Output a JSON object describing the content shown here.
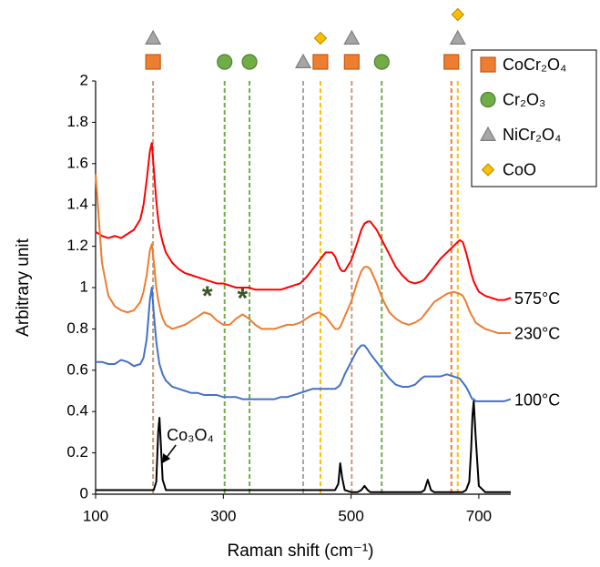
{
  "chart_data": {
    "type": "line",
    "x_label": "Raman shift (cm⁻¹)",
    "y_label": "Arbitrary unit",
    "xlim": [
      100,
      750
    ],
    "xticks": [
      100,
      300,
      500,
      700
    ],
    "ylim": [
      0,
      2
    ],
    "yticks": [
      0,
      0.2,
      0.4,
      0.6,
      0.8,
      1,
      1.2,
      1.4,
      1.6,
      1.8,
      2
    ],
    "legend_position": "top-right",
    "x": [
      100,
      110,
      120,
      130,
      140,
      150,
      160,
      170,
      175,
      180,
      185,
      188,
      191,
      195,
      198,
      200,
      202,
      205,
      210,
      220,
      230,
      240,
      250,
      260,
      270,
      280,
      290,
      300,
      310,
      320,
      330,
      340,
      350,
      360,
      370,
      380,
      390,
      400,
      410,
      420,
      430,
      440,
      450,
      460,
      470,
      475,
      480,
      483,
      486,
      490,
      500,
      510,
      516,
      521,
      526,
      530,
      540,
      550,
      560,
      570,
      580,
      590,
      600,
      610,
      615,
      620,
      625,
      630,
      640,
      650,
      660,
      670,
      675,
      680,
      685,
      688,
      690,
      692,
      695,
      700,
      710,
      720,
      730,
      740,
      750
    ],
    "series": [
      {
        "name": "575°C",
        "color": "#ff0000",
        "label_style": "end",
        "values": [
          1.27,
          1.25,
          1.24,
          1.25,
          1.24,
          1.26,
          1.28,
          1.33,
          1.4,
          1.52,
          1.66,
          1.7,
          1.58,
          1.42,
          1.33,
          1.29,
          1.26,
          1.22,
          1.17,
          1.12,
          1.09,
          1.07,
          1.06,
          1.05,
          1.04,
          1.03,
          1.02,
          1.02,
          1.01,
          1.0,
          1.0,
          1.0,
          0.99,
          0.99,
          0.99,
          0.99,
          0.99,
          1.0,
          1.01,
          1.02,
          1.05,
          1.09,
          1.13,
          1.17,
          1.17,
          1.15,
          1.11,
          1.09,
          1.08,
          1.08,
          1.13,
          1.22,
          1.28,
          1.31,
          1.32,
          1.32,
          1.28,
          1.22,
          1.16,
          1.1,
          1.06,
          1.03,
          1.02,
          1.03,
          1.04,
          1.06,
          1.08,
          1.1,
          1.14,
          1.17,
          1.2,
          1.23,
          1.22,
          1.17,
          1.11,
          1.07,
          1.05,
          1.03,
          1.01,
          0.98,
          0.96,
          0.95,
          0.94,
          0.94,
          0.95
        ]
      },
      {
        "name": "230°C",
        "color": "#ed7d31",
        "label_style": "end",
        "values": [
          1.55,
          1.12,
          0.96,
          0.91,
          0.89,
          0.88,
          0.89,
          0.93,
          0.98,
          1.06,
          1.18,
          1.21,
          1.13,
          1.0,
          0.94,
          0.91,
          0.88,
          0.85,
          0.82,
          0.8,
          0.81,
          0.82,
          0.84,
          0.86,
          0.88,
          0.87,
          0.84,
          0.82,
          0.82,
          0.85,
          0.87,
          0.85,
          0.82,
          0.8,
          0.8,
          0.8,
          0.81,
          0.82,
          0.82,
          0.83,
          0.85,
          0.87,
          0.88,
          0.86,
          0.82,
          0.8,
          0.8,
          0.81,
          0.83,
          0.86,
          0.93,
          1.03,
          1.08,
          1.1,
          1.1,
          1.09,
          1.02,
          0.94,
          0.88,
          0.85,
          0.83,
          0.82,
          0.83,
          0.85,
          0.87,
          0.89,
          0.91,
          0.93,
          0.95,
          0.97,
          0.98,
          0.97,
          0.96,
          0.93,
          0.89,
          0.87,
          0.86,
          0.85,
          0.83,
          0.82,
          0.8,
          0.79,
          0.78,
          0.78,
          0.78
        ]
      },
      {
        "name": "100°C",
        "color": "#4472c4",
        "label_style": "end",
        "values": [
          0.64,
          0.64,
          0.63,
          0.63,
          0.65,
          0.64,
          0.62,
          0.63,
          0.66,
          0.75,
          0.94,
          1.0,
          0.88,
          0.74,
          0.67,
          0.63,
          0.61,
          0.58,
          0.55,
          0.52,
          0.51,
          0.5,
          0.49,
          0.49,
          0.48,
          0.48,
          0.48,
          0.47,
          0.47,
          0.47,
          0.46,
          0.46,
          0.46,
          0.46,
          0.46,
          0.46,
          0.47,
          0.47,
          0.48,
          0.49,
          0.5,
          0.51,
          0.51,
          0.51,
          0.51,
          0.51,
          0.52,
          0.53,
          0.55,
          0.58,
          0.64,
          0.7,
          0.72,
          0.72,
          0.7,
          0.68,
          0.64,
          0.6,
          0.56,
          0.53,
          0.52,
          0.52,
          0.53,
          0.56,
          0.57,
          0.57,
          0.57,
          0.57,
          0.57,
          0.58,
          0.57,
          0.56,
          0.54,
          0.52,
          0.49,
          0.47,
          0.46,
          0.46,
          0.45,
          0.45,
          0.45,
          0.45,
          0.45,
          0.45,
          0.46
        ]
      },
      {
        "name": "Co₃O₄",
        "color": "#000000",
        "label_style": "arrow",
        "values": [
          0.02,
          0.02,
          0.02,
          0.02,
          0.02,
          0.02,
          0.02,
          0.02,
          0.02,
          0.02,
          0.02,
          0.02,
          0.02,
          0.06,
          0.3,
          0.37,
          0.25,
          0.07,
          0.02,
          0.02,
          0.02,
          0.02,
          0.02,
          0.02,
          0.02,
          0.02,
          0.02,
          0.02,
          0.02,
          0.02,
          0.02,
          0.02,
          0.02,
          0.02,
          0.02,
          0.02,
          0.02,
          0.02,
          0.02,
          0.02,
          0.02,
          0.02,
          0.02,
          0.02,
          0.02,
          0.02,
          0.05,
          0.15,
          0.08,
          0.02,
          0.01,
          0.01,
          0.02,
          0.04,
          0.02,
          0.01,
          0.01,
          0.01,
          0.01,
          0.01,
          0.01,
          0.01,
          0.01,
          0.01,
          0.02,
          0.07,
          0.02,
          0.01,
          0.01,
          0.01,
          0.01,
          0.01,
          0.01,
          0.02,
          0.06,
          0.22,
          0.38,
          0.45,
          0.28,
          0.04,
          0.01,
          0.01,
          0.01,
          0.01,
          0.01
        ]
      }
    ],
    "species": [
      {
        "name": "CoCr₂O₄",
        "shape": "square",
        "color": "#ed7d31"
      },
      {
        "name": "Cr₂O₃",
        "shape": "circle",
        "color": "#70ad47"
      },
      {
        "name": "NiCr₂O₄",
        "shape": "triangle",
        "color": "#a5a5a5"
      },
      {
        "name": "CoO",
        "shape": "diamond",
        "color": "#ffc000"
      }
    ],
    "references": [
      {
        "x": 190,
        "color": "#c49a7e",
        "species": [
          0,
          2
        ]
      },
      {
        "x": 302,
        "color": "#70ad47",
        "species": [
          1
        ]
      },
      {
        "x": 341,
        "color": "#70ad47",
        "species": [
          1
        ]
      },
      {
        "x": 425,
        "color": "#a5a5a5",
        "species": [
          2
        ]
      },
      {
        "x": 452,
        "color": "#ffc000",
        "species": [
          0,
          3
        ]
      },
      {
        "x": 501,
        "color": "#c49a7e",
        "species": [
          0,
          2
        ]
      },
      {
        "x": 548,
        "color": "#70ad47",
        "species": [
          1
        ]
      },
      {
        "x": 657,
        "color": "#ed7d31",
        "species": [
          0
        ]
      },
      {
        "x": 667,
        "color": "#ffc000",
        "species": [
          2,
          3
        ]
      }
    ],
    "annotations": [
      {
        "text": "*",
        "x": 275,
        "series": 1,
        "color": "#375623"
      },
      {
        "text": "*",
        "x": 330,
        "series": 1,
        "color": "#375623"
      }
    ]
  }
}
